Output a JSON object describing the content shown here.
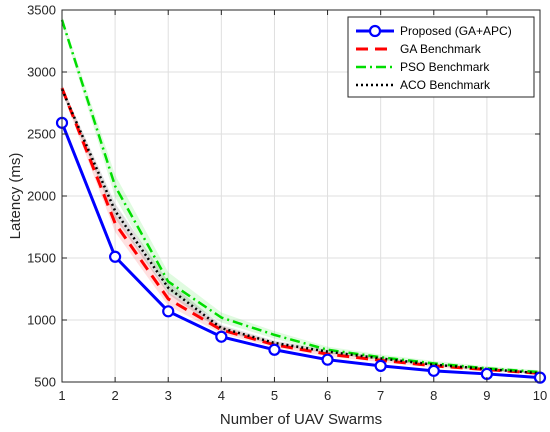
{
  "chart_data": {
    "type": "line",
    "xlabel": "Number of UAV Swarms",
    "ylabel": "Latency (ms)",
    "x": [
      1,
      2,
      3,
      4,
      5,
      6,
      7,
      8,
      9,
      10
    ],
    "xlim": [
      1,
      10
    ],
    "ylim": [
      500,
      3500
    ],
    "xticks": [
      "1",
      "2",
      "3",
      "4",
      "5",
      "6",
      "7",
      "8",
      "9",
      "10"
    ],
    "yticks": [
      "500",
      "1000",
      "1500",
      "2000",
      "2500",
      "3000",
      "3500"
    ],
    "grid": true,
    "legend_position": "top-right",
    "series": [
      {
        "name": "Proposed (GA+APC)",
        "color": "#0000ff",
        "style": "solid",
        "marker": "circle",
        "values": [
          2590,
          1510,
          1070,
          865,
          760,
          680,
          630,
          590,
          565,
          535
        ],
        "band": [
          20,
          15,
          12,
          10,
          8,
          8,
          7,
          6,
          6,
          5
        ]
      },
      {
        "name": "GA Benchmark",
        "color": "#ff0000",
        "style": "dashed",
        "marker": "none",
        "values": [
          2870,
          1780,
          1170,
          920,
          800,
          725,
          675,
          630,
          600,
          570
        ],
        "band": [
          30,
          70,
          55,
          30,
          20,
          18,
          15,
          12,
          10,
          8
        ]
      },
      {
        "name": "PSO Benchmark",
        "color": "#00dd00",
        "style": "dashdot",
        "marker": "none",
        "values": [
          3420,
          2080,
          1310,
          1020,
          880,
          760,
          700,
          650,
          610,
          580
        ],
        "band": [
          30,
          90,
          75,
          40,
          30,
          25,
          22,
          20,
          18,
          15
        ]
      },
      {
        "name": "ACO Benchmark",
        "color": "#000000",
        "style": "dotted",
        "marker": "none",
        "values": [
          2860,
          1880,
          1260,
          935,
          815,
          745,
          690,
          640,
          605,
          570
        ],
        "band": [
          25,
          60,
          50,
          25,
          18,
          15,
          12,
          10,
          9,
          8
        ]
      }
    ]
  }
}
